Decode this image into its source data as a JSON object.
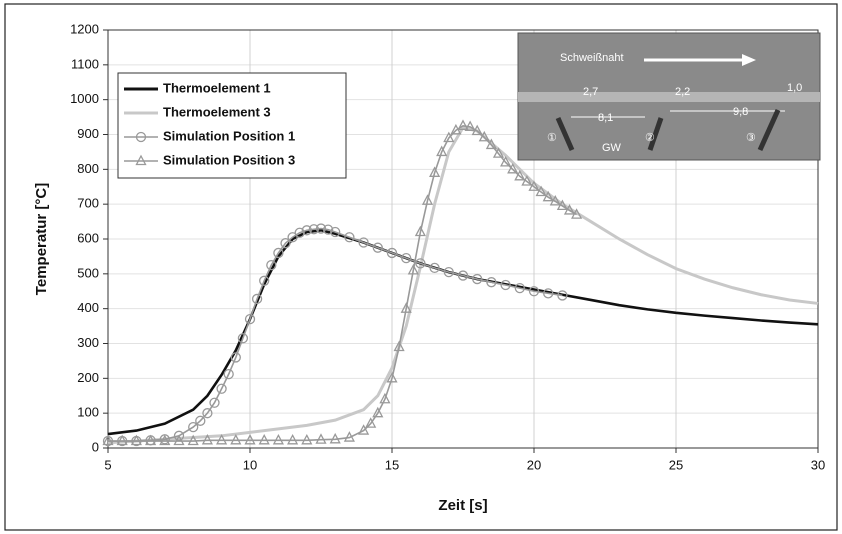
{
  "chart_data": {
    "type": "line",
    "x_label": "Zeit [s]",
    "y_label": "Temperatur [°C]",
    "xlim": [
      5,
      30
    ],
    "ylim": [
      0,
      1200
    ],
    "xticks": [
      5,
      10,
      15,
      20,
      25,
      30
    ],
    "yticks": [
      0,
      100,
      200,
      300,
      400,
      500,
      600,
      700,
      800,
      900,
      1000,
      1100,
      1200
    ],
    "grid": true,
    "legend": "upper left",
    "series": [
      {
        "name": "Thermoelement 1",
        "color": "#111111",
        "marker": "none",
        "x": [
          5,
          6,
          7,
          8,
          8.5,
          9,
          9.5,
          10,
          10.5,
          11,
          11.5,
          12,
          12.5,
          13,
          14,
          15,
          16,
          17,
          18,
          19,
          20,
          21,
          22,
          23,
          24,
          25,
          26,
          27,
          28,
          29,
          30
        ],
        "values": [
          40,
          50,
          70,
          110,
          150,
          210,
          280,
          370,
          470,
          550,
          600,
          620,
          625,
          615,
          590,
          560,
          530,
          505,
          485,
          470,
          455,
          440,
          425,
          410,
          398,
          388,
          380,
          373,
          366,
          360,
          355
        ]
      },
      {
        "name": "Thermoelement 3",
        "color": "#c8c8c8",
        "marker": "none",
        "x": [
          5,
          7,
          9,
          10,
          11,
          12,
          13,
          14,
          14.5,
          15,
          15.5,
          16,
          16.5,
          17,
          17.5,
          18,
          19,
          20,
          21,
          22,
          23,
          24,
          25,
          26,
          27,
          28,
          29,
          30
        ],
        "values": [
          15,
          25,
          35,
          45,
          55,
          65,
          80,
          110,
          150,
          230,
          350,
          520,
          700,
          850,
          920,
          910,
          840,
          760,
          700,
          650,
          600,
          555,
          515,
          485,
          460,
          440,
          425,
          415
        ]
      },
      {
        "name": "Simulation Position 1",
        "color": "#999999",
        "marker": "circle",
        "x": [
          5,
          5.5,
          6,
          6.5,
          7,
          7.5,
          8,
          8.25,
          8.5,
          8.75,
          9,
          9.25,
          9.5,
          9.75,
          10,
          10.25,
          10.5,
          10.75,
          11,
          11.25,
          11.5,
          11.75,
          12,
          12.25,
          12.5,
          12.75,
          13,
          13.5,
          14,
          14.5,
          15,
          15.5,
          16,
          16.5,
          17,
          17.5,
          18,
          18.5,
          19,
          19.5,
          20,
          20.5,
          21
        ],
        "values": [
          20,
          20,
          20,
          22,
          25,
          35,
          60,
          78,
          100,
          130,
          170,
          212,
          260,
          315,
          370,
          428,
          480,
          525,
          560,
          588,
          605,
          618,
          625,
          628,
          630,
          627,
          620,
          605,
          590,
          575,
          560,
          545,
          530,
          517,
          505,
          495,
          485,
          476,
          468,
          459,
          450,
          444,
          438
        ]
      },
      {
        "name": "Simulation Position 3",
        "color": "#999999",
        "marker": "triangle",
        "x": [
          5,
          5.5,
          6,
          6.5,
          7,
          7.5,
          8,
          8.5,
          9,
          9.5,
          10,
          10.5,
          11,
          11.5,
          12,
          12.5,
          13,
          13.5,
          14,
          14.25,
          14.5,
          14.75,
          15,
          15.25,
          15.5,
          15.75,
          16,
          16.25,
          16.5,
          16.75,
          17,
          17.25,
          17.5,
          17.75,
          18,
          18.25,
          18.5,
          18.75,
          19,
          19.25,
          19.5,
          19.75,
          20,
          20.25,
          20.5,
          20.75,
          21,
          21.25,
          21.5
        ],
        "values": [
          20,
          20,
          20,
          20,
          20,
          20,
          20,
          22,
          22,
          22,
          22,
          22,
          22,
          22,
          22,
          24,
          25,
          30,
          50,
          70,
          100,
          140,
          200,
          290,
          400,
          510,
          620,
          710,
          790,
          850,
          890,
          912,
          925,
          922,
          910,
          892,
          870,
          845,
          820,
          800,
          780,
          765,
          750,
          735,
          720,
          708,
          695,
          682,
          670
        ]
      }
    ],
    "inset": {
      "title": "Schweißnaht",
      "labels": [
        "2,7",
        "8,1",
        "2,2",
        "9,8",
        "1,0",
        "①",
        "②",
        "③",
        "GW"
      ]
    }
  }
}
